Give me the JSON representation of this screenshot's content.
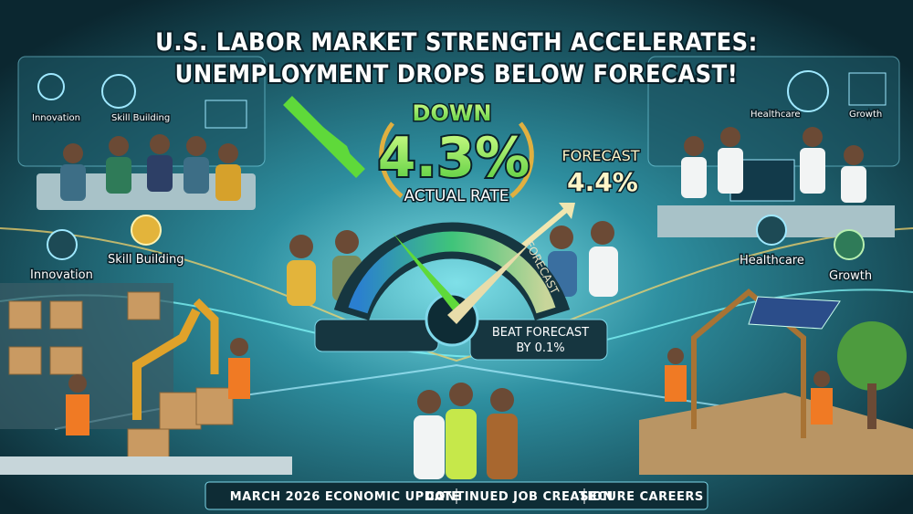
{
  "header": {
    "title_line1": "U.S. LABOR MARKET STRENGTH ACCELERATES:",
    "title_line2": "UNEMPLOYMENT DROPS BELOW FORECAST!"
  },
  "headline": {
    "direction": "DOWN",
    "actual": "4.3%",
    "actual_label": "ACTUAL RATE",
    "forecast_label": "FORECAST",
    "forecast": "4.4%"
  },
  "gauge": {
    "label": "FORECAST",
    "beat_line1": "BEAT FORECAST",
    "beat_line2": "BY 0.1%"
  },
  "left_panel": {
    "labels": [
      "Innovation",
      "Skill Building"
    ],
    "icon_labels": [
      "Innovation",
      "Skill Building"
    ]
  },
  "right_panel": {
    "labels": [
      "Healthcare",
      "Growth"
    ],
    "icon_labels": [
      "Healthcare",
      "Growth"
    ]
  },
  "footer": {
    "items": [
      "MARCH 2026 ECONOMIC UPDATE",
      "CONTINUED JOB CREATION",
      "SECURE CAREERS"
    ]
  }
}
